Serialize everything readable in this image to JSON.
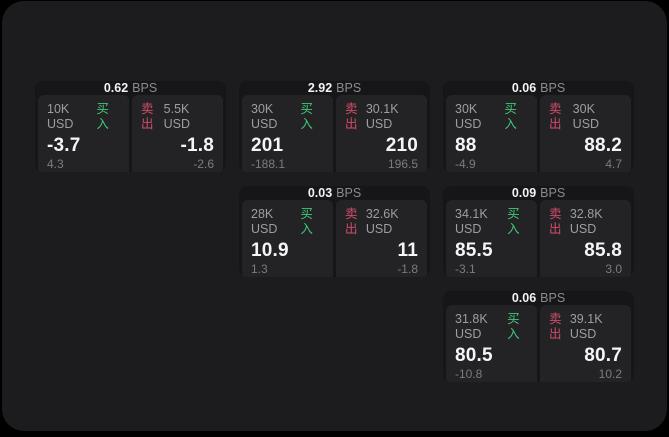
{
  "labels": {
    "bps_unit": "BPS",
    "buy": "买入",
    "sell": "卖出"
  },
  "colors": {
    "outer_background": "#000000",
    "panel": "#1c1c1e",
    "card": "#161618",
    "pane": "#232325",
    "buy_green": "#42c77a",
    "sell_red": "#d04b6b",
    "text_primary": "#f2f2f4",
    "text_secondary": "#9d9da2",
    "text_muted": "#7b7b81"
  },
  "cards": [
    {
      "bps": "0.62",
      "buy": {
        "amount": "10K USD",
        "price": "-3.7",
        "delta": "4.3"
      },
      "sell": {
        "amount": "5.5K USD",
        "price": "-1.8",
        "delta": "-2.6"
      }
    },
    {
      "bps": "2.92",
      "buy": {
        "amount": "30K USD",
        "price": "201",
        "delta": "-188.1"
      },
      "sell": {
        "amount": "30.1K USD",
        "price": "210",
        "delta": "196.5"
      }
    },
    {
      "bps": "0.06",
      "buy": {
        "amount": "30K USD",
        "price": "88",
        "delta": "-4.9"
      },
      "sell": {
        "amount": "30K USD",
        "price": "88.2",
        "delta": "4.7"
      }
    },
    {
      "bps": "0.03",
      "buy": {
        "amount": "28K USD",
        "price": "10.9",
        "delta": "1.3"
      },
      "sell": {
        "amount": "32.6K USD",
        "price": "11",
        "delta": "-1.8"
      }
    },
    {
      "bps": "0.09",
      "buy": {
        "amount": "34.1K USD",
        "price": "85.5",
        "delta": "-3.1"
      },
      "sell": {
        "amount": "32.8K USD",
        "price": "85.8",
        "delta": "3.0"
      }
    },
    {
      "bps": "0.06",
      "buy": {
        "amount": "31.8K USD",
        "price": "80.5",
        "delta": "-10.8"
      },
      "sell": {
        "amount": "39.1K USD",
        "price": "80.7",
        "delta": "10.2"
      }
    }
  ]
}
